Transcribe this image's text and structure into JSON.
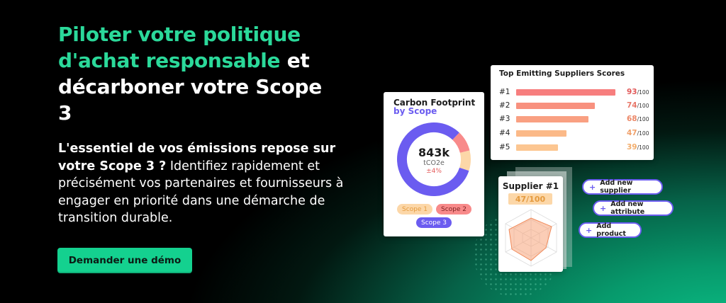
{
  "hero": {
    "title_accent": "Piloter votre politique d'achat responsable",
    "title_rest": " et décarboner votre Scope 3",
    "subtitle_strong": "L'essentiel de vos émissions repose sur votre Scope 3 ?",
    "subtitle_rest": " Identifiez rapidement et précisément vos partenaires et fournisseurs à engager en priorité dans une démarche de transition durable.",
    "cta_label": "Demander une démo"
  },
  "colors": {
    "accent_green": "#2bd99a",
    "cta_green": "#14d18f",
    "purple": "#6b5cf0",
    "coral": "#f88a8a",
    "peach": "#fcd7a8"
  },
  "carbon_card": {
    "title": "Carbon Footprint",
    "subtitle": "by Scope",
    "value": "843k",
    "unit": "tCO2e",
    "delta": "±4%",
    "scopes": [
      {
        "label": "Scope 1",
        "share": 0.09,
        "color": "#fcd7a8"
      },
      {
        "label": "Scope 2",
        "share": 0.09,
        "color": "#f88a8a"
      },
      {
        "label": "Scope 3",
        "share": 0.82,
        "color": "#6b5cf0"
      }
    ]
  },
  "suppliers_card": {
    "title": "Top Emitting Suppliers Scores",
    "max_label": "/100",
    "rows": [
      {
        "rank": "#1",
        "score": "93",
        "value": 93,
        "color": "#f77e7e",
        "text_color": "#e25a5a"
      },
      {
        "rank": "#2",
        "score": "74",
        "value": 74,
        "color": "#f8917f",
        "text_color": "#e8786a"
      },
      {
        "rank": "#3",
        "score": "68",
        "value": 68,
        "color": "#f9a082",
        "text_color": "#ec8868"
      },
      {
        "rank": "#4",
        "score": "47",
        "value": 47,
        "color": "#fbb988",
        "text_color": "#f0a06a"
      },
      {
        "rank": "#5",
        "score": "39",
        "value": 39,
        "color": "#fcc691",
        "text_color": "#f2ad6c"
      }
    ]
  },
  "supplier_card": {
    "title": "Supplier #1",
    "score": "47/100"
  },
  "actions": {
    "add_supplier": "Add new supplier",
    "add_attribute": "Add new attribute",
    "add_product": "Add product",
    "plus": "+"
  }
}
